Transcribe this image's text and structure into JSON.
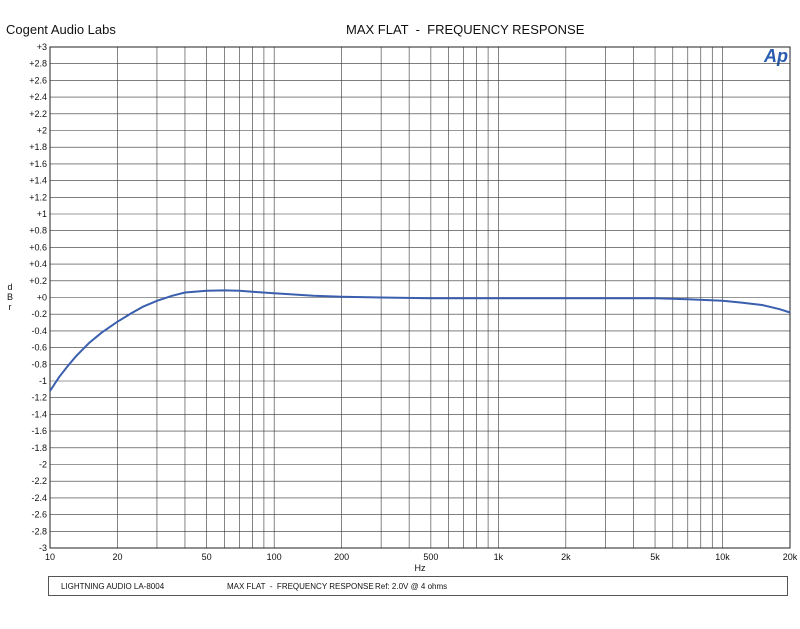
{
  "header": {
    "company": "Cogent Audio Labs",
    "title": "MAX FLAT  -  FREQUENCY RESPONSE",
    "logo_text": "Ap"
  },
  "footer": {
    "device": "LIGHTNING AUDIO LA-8004",
    "title": "MAX FLAT  -  FREQUENCY RESPONSE",
    "reference": "Ref: 2.0V @ 4 ohms"
  },
  "chart_data": {
    "type": "line",
    "xlabel": "Hz",
    "ylabel": "d B r",
    "x_scale": "log",
    "xlim": [
      10,
      20000
    ],
    "ylim": [
      -3,
      3
    ],
    "grid": true,
    "x_ticks": [
      {
        "value": 10,
        "label": "10"
      },
      {
        "value": 20,
        "label": "20"
      },
      {
        "value": 50,
        "label": "50"
      },
      {
        "value": 100,
        "label": "100"
      },
      {
        "value": 200,
        "label": "200"
      },
      {
        "value": 500,
        "label": "500"
      },
      {
        "value": 1000,
        "label": "1k"
      },
      {
        "value": 2000,
        "label": "2k"
      },
      {
        "value": 5000,
        "label": "5k"
      },
      {
        "value": 10000,
        "label": "10k"
      },
      {
        "value": 20000,
        "label": "20k"
      }
    ],
    "y_ticks": [
      {
        "value": 3,
        "label": "+3"
      },
      {
        "value": 2.8,
        "label": "+2.8"
      },
      {
        "value": 2.6,
        "label": "+2.6"
      },
      {
        "value": 2.4,
        "label": "+2.4"
      },
      {
        "value": 2.2,
        "label": "+2.2"
      },
      {
        "value": 2,
        "label": "+2"
      },
      {
        "value": 1.8,
        "label": "+1.8"
      },
      {
        "value": 1.6,
        "label": "+1.6"
      },
      {
        "value": 1.4,
        "label": "+1.4"
      },
      {
        "value": 1.2,
        "label": "+1.2"
      },
      {
        "value": 1,
        "label": "+1"
      },
      {
        "value": 0.8,
        "label": "+0.8"
      },
      {
        "value": 0.6,
        "label": "+0.6"
      },
      {
        "value": 0.4,
        "label": "+0.4"
      },
      {
        "value": 0.2,
        "label": "+0.2"
      },
      {
        "value": 0,
        "label": "+0"
      },
      {
        "value": -0.2,
        "label": "-0.2"
      },
      {
        "value": -0.4,
        "label": "-0.4"
      },
      {
        "value": -0.6,
        "label": "-0.6"
      },
      {
        "value": -0.8,
        "label": "-0.8"
      },
      {
        "value": -1,
        "label": "-1"
      },
      {
        "value": -1.2,
        "label": "-1.2"
      },
      {
        "value": -1.4,
        "label": "-1.4"
      },
      {
        "value": -1.6,
        "label": "-1.6"
      },
      {
        "value": -1.8,
        "label": "-1.8"
      },
      {
        "value": -2,
        "label": "-2"
      },
      {
        "value": -2.2,
        "label": "-2.2"
      },
      {
        "value": -2.4,
        "label": "-2.4"
      },
      {
        "value": -2.6,
        "label": "-2.6"
      },
      {
        "value": -2.8,
        "label": "-2.8"
      },
      {
        "value": -3,
        "label": "-3"
      }
    ],
    "series": [
      {
        "color": "#3a5fae",
        "x": [
          10,
          11,
          12,
          13,
          14,
          15,
          17,
          20,
          23,
          26,
          30,
          35,
          40,
          50,
          60,
          70,
          80,
          100,
          150,
          200,
          300,
          500,
          1000,
          2000,
          3000,
          5000,
          7000,
          10000,
          12000,
          15000,
          18000,
          20000
        ],
        "y": [
          -1.12,
          -0.95,
          -0.82,
          -0.71,
          -0.62,
          -0.54,
          -0.42,
          -0.29,
          -0.19,
          -0.11,
          -0.04,
          0.02,
          0.06,
          0.08,
          0.085,
          0.08,
          0.07,
          0.05,
          0.02,
          0.01,
          0.0,
          -0.01,
          -0.01,
          -0.01,
          -0.01,
          -0.01,
          -0.02,
          -0.04,
          -0.06,
          -0.09,
          -0.14,
          -0.18
        ]
      }
    ]
  }
}
